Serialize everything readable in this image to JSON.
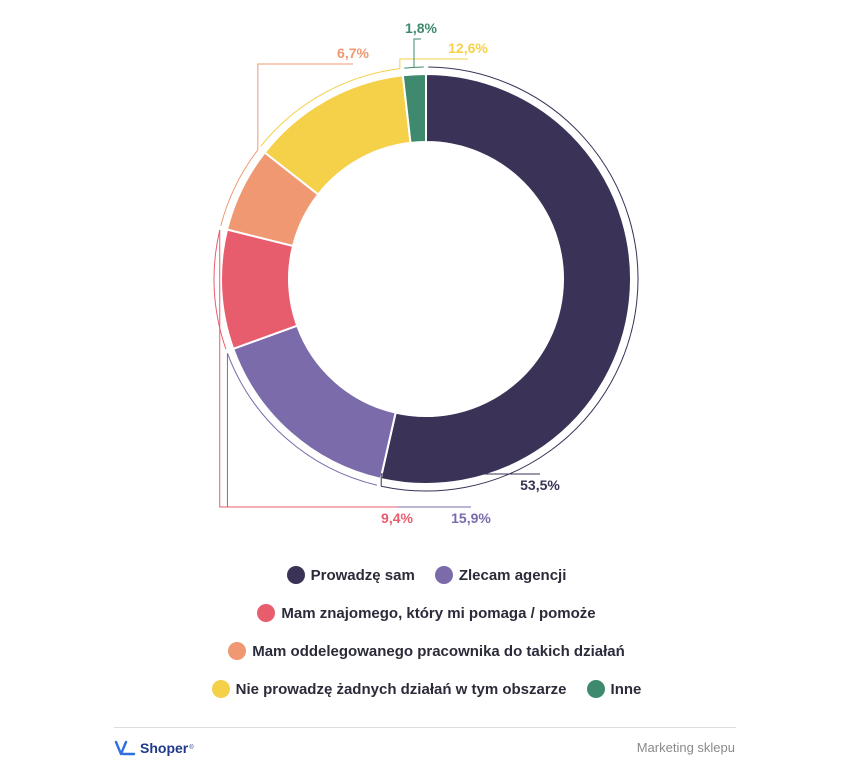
{
  "chart_data": {
    "type": "pie",
    "variant": "donut",
    "title": "",
    "series": [
      {
        "name": "Prowadzę sam",
        "value": 53.5,
        "label": "53,5%",
        "color": "#3a3257"
      },
      {
        "name": "Zlecam agencji",
        "value": 15.9,
        "label": "15,9%",
        "color": "#7b6bab"
      },
      {
        "name": "Mam znajomego, który mi pomaga / pomoże",
        "value": 9.4,
        "label": "9,4%",
        "color": "#e85d6e"
      },
      {
        "name": "Mam oddelegowanego pracownika do takich działań",
        "value": 6.7,
        "label": "6,7%",
        "color": "#ef9872"
      },
      {
        "name": "Nie prowadzę żadnych działań w tym obszarze",
        "value": 12.6,
        "label": "12,6%",
        "color": "#f5d049"
      },
      {
        "name": "Inne",
        "value": 1.8,
        "label": "1,8%",
        "color": "#3f8a6e"
      }
    ],
    "legend_position": "bottom"
  },
  "footer": {
    "brand": "Shoper",
    "brand_tm": "®",
    "caption": "Marketing sklepu"
  }
}
